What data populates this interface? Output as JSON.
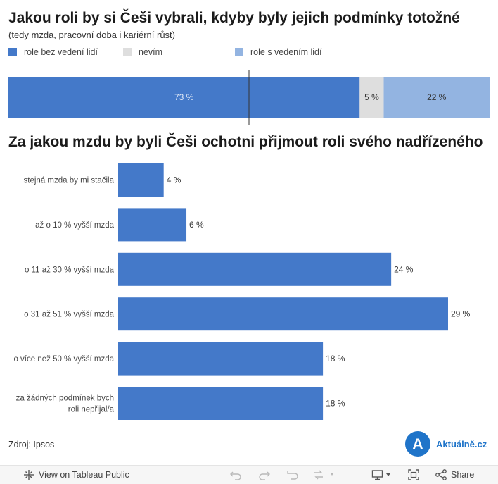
{
  "chart_data": [
    {
      "type": "bar",
      "orientation": "horizontal",
      "stacked": true,
      "title": "Jakou roli by si Češi vybrali, kdyby byly jejich podmínky totožné",
      "subtitle": "(tedy mzda, pracovní doba i kariérní růst)",
      "legend_position": "top",
      "series": [
        {
          "name": "role bez vedení lidí",
          "value": 73,
          "label": "73 %",
          "color": "#4479c9"
        },
        {
          "name": "nevím",
          "value": 5,
          "label": "5 %",
          "color": "#dedede"
        },
        {
          "name": "role s vedením lidí",
          "value": 22,
          "label": "22 %",
          "color": "#93b4e1"
        }
      ],
      "reference_line_value": 50,
      "xlim": [
        0,
        100
      ]
    },
    {
      "type": "bar",
      "orientation": "horizontal",
      "title": "Za jakou mzdu by byli Češi ochotni přijmout roli svého nadřízeného",
      "categories": [
        [
          "stejná mzda by mi stačila"
        ],
        [
          "až o 10 % vyšší mzda"
        ],
        [
          "o 11 až 30 % vyšší mzda"
        ],
        [
          "o 31 až 51 % vyšší mzda"
        ],
        [
          "o více než 50 % vyšší mzda"
        ],
        [
          "za žádných podmínek bych",
          "roli nepřijal/a"
        ]
      ],
      "values": [
        4,
        6,
        24,
        29,
        18,
        18
      ],
      "labels": [
        "4 %",
        "6 %",
        "24 %",
        "29 %",
        "18 %",
        "18 %"
      ],
      "color": "#4479c9",
      "xlim": [
        0,
        29
      ]
    }
  ],
  "source": "Zdroj: Ipsos",
  "brand": {
    "letter": "A",
    "name": "Aktuálně.cz",
    "color": "#1f74c9"
  },
  "toolbar": {
    "view_label": "View on Tableau Public",
    "share_label": "Share"
  },
  "icons": {
    "tableau": "tableau-logo-icon",
    "undo": "undo-icon",
    "redo": "redo-icon",
    "revert": "revert-icon",
    "refresh": "refresh-icon",
    "download": "download-icon",
    "fullscreen": "fullscreen-icon",
    "share": "share-icon"
  }
}
